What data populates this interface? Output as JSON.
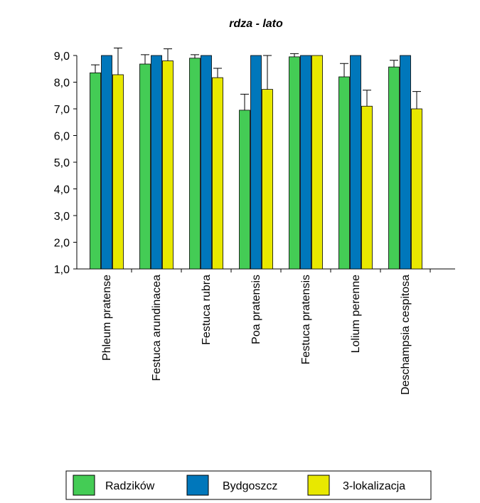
{
  "chart_data": {
    "type": "bar",
    "title": "rdza - lato",
    "xlabel": "",
    "ylabel": "",
    "ylim": [
      1.0,
      9.0
    ],
    "yticks": [
      "1,0",
      "2,0",
      "3,0",
      "4,0",
      "5,0",
      "6,0",
      "7,0",
      "8,0",
      "9,0"
    ],
    "ytick_values": [
      1,
      2,
      3,
      4,
      5,
      6,
      7,
      8,
      9
    ],
    "categories": [
      "Phleum pratense",
      "Festuca arundinacea",
      "Festuca rubra",
      "Poa pratensis",
      "Festuca pratensis",
      "Lolium perenne",
      "Deschampsia cespitosa"
    ],
    "series": [
      {
        "name": "Radzików",
        "color": "#44cc55",
        "values": [
          8.35,
          8.68,
          8.9,
          6.95,
          8.95,
          8.2,
          8.57
        ],
        "error_plus": [
          0.3,
          0.35,
          0.13,
          0.6,
          0.12,
          0.5,
          0.25
        ]
      },
      {
        "name": "Bydgoszcz",
        "color": "#0077bb",
        "values": [
          9.0,
          9.0,
          9.0,
          9.0,
          9.0,
          9.0,
          9.0
        ],
        "error_plus": [
          0,
          0,
          0,
          0,
          0,
          0,
          0
        ]
      },
      {
        "name": "3-lokalizacja",
        "color": "#e8e800",
        "values": [
          8.28,
          8.8,
          8.17,
          7.73,
          9.0,
          7.1,
          7.0
        ],
        "error_plus": [
          1.0,
          0.45,
          0.35,
          1.27,
          0,
          0.6,
          0.65
        ]
      }
    ],
    "legend_position": "bottom",
    "grid": false
  }
}
